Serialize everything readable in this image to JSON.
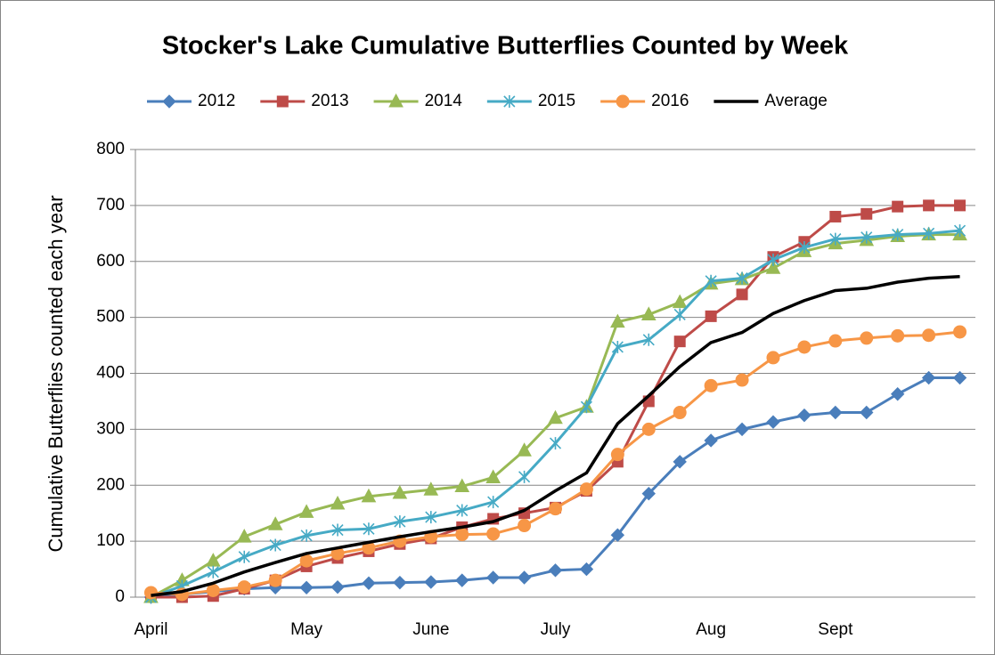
{
  "chart_data": {
    "type": "line",
    "title": "Stocker's Lake Cumulative Butterflies Counted by Week",
    "y_label": "Cumulative Butterflies counted each year",
    "categories": [
      "April",
      null,
      null,
      null,
      null,
      "May",
      null,
      null,
      null,
      "June",
      null,
      null,
      null,
      "July",
      null,
      null,
      null,
      null,
      "Aug",
      null,
      null,
      null,
      "Sept",
      null,
      null,
      null,
      null
    ],
    "series": [
      {
        "name": "2012",
        "color": "#4a7ebb",
        "marker": "diamond",
        "values": [
          0,
          5,
          10,
          15,
          17,
          17,
          18,
          25,
          26,
          27,
          30,
          35,
          35,
          48,
          50,
          111,
          185,
          242,
          280,
          300,
          313,
          325,
          330,
          330,
          363,
          392,
          392
        ]
      },
      {
        "name": "2013",
        "color": "#be4b48",
        "marker": "square",
        "values": [
          0,
          0,
          2,
          15,
          30,
          55,
          70,
          82,
          95,
          105,
          125,
          140,
          150,
          160,
          190,
          242,
          350,
          457,
          502,
          541,
          608,
          635,
          680,
          685,
          698,
          700,
          700
        ]
      },
      {
        "name": "2014",
        "color": "#98b954",
        "marker": "triangle",
        "values": [
          0,
          30,
          65,
          108,
          130,
          152,
          167,
          180,
          186,
          192,
          198,
          214,
          262,
          320,
          340,
          492,
          505,
          527,
          560,
          568,
          588,
          618,
          632,
          638,
          645,
          648,
          648
        ]
      },
      {
        "name": "2015",
        "color": "#46aac5",
        "marker": "star",
        "values": [
          0,
          20,
          45,
          72,
          93,
          110,
          120,
          122,
          135,
          143,
          155,
          170,
          215,
          275,
          340,
          447,
          460,
          505,
          565,
          570,
          603,
          625,
          640,
          643,
          648,
          650,
          655
        ]
      },
      {
        "name": "2016",
        "color": "#f79646",
        "marker": "circle",
        "values": [
          8,
          5,
          12,
          18,
          30,
          65,
          78,
          88,
          100,
          108,
          112,
          113,
          128,
          158,
          193,
          255,
          300,
          330,
          378,
          388,
          428,
          447,
          458,
          463,
          467,
          468,
          474
        ]
      },
      {
        "name": "Average",
        "color": "#000000",
        "marker": "none",
        "values": [
          3,
          10,
          25,
          45,
          62,
          78,
          88,
          98,
          108,
          117,
          125,
          135,
          155,
          190,
          222,
          310,
          360,
          412,
          455,
          473,
          507,
          530,
          548,
          552,
          563,
          570,
          573
        ]
      }
    ],
    "ylim": [
      0,
      800
    ],
    "yticks": [
      0,
      100,
      200,
      300,
      400,
      500,
      600,
      700,
      800
    ],
    "grid": true,
    "legend": "top"
  }
}
